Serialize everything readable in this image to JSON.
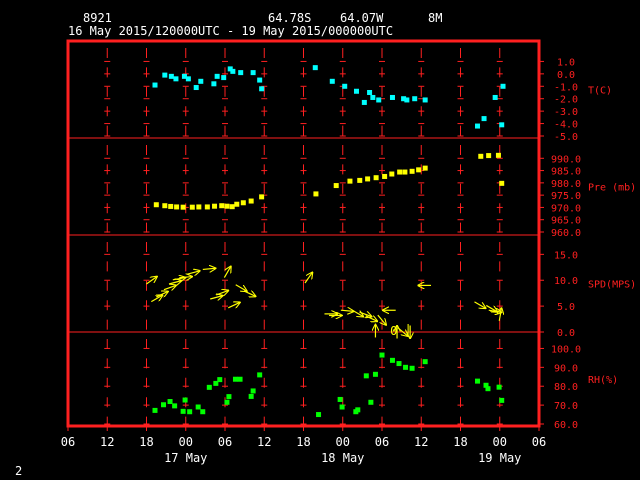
{
  "header": {
    "station": "8921",
    "latitude": "64.78S",
    "longitude": "64.07W",
    "elevation": "8M",
    "period": "16 May 2015/120000UTC - 19 May 2015/000000UTC"
  },
  "footer": {
    "page": "2"
  },
  "colors": {
    "frame": "#ff2020",
    "temperature": "#00ffff",
    "pressure": "#ffff00",
    "wind": "#ffff00",
    "humidity": "#00ff00",
    "text": "#ffffff"
  },
  "chart_data": {
    "type": "scatter",
    "x_unit": "hours after 2015-05-16 00:00 UTC",
    "x_range": [
      6,
      78
    ],
    "x_ticks": [
      6,
      12,
      18,
      24,
      30,
      36,
      42,
      48,
      54,
      60,
      66,
      72,
      78
    ],
    "x_tick_labels": [
      "06",
      "12",
      "18",
      "00",
      "06",
      "12",
      "18",
      "00",
      "06",
      "12",
      "18",
      "00",
      "06"
    ],
    "date_labels": [
      {
        "x": 24,
        "text": "17 May"
      },
      {
        "x": 48,
        "text": "18 May"
      },
      {
        "x": 72,
        "text": "19 May"
      }
    ],
    "panels": [
      {
        "name": "temperature",
        "label": "T(C)",
        "ylim": [
          -5.0,
          2.0
        ],
        "y_ticks": [
          1.0,
          0.0,
          -1.0,
          -2.0,
          -3.0,
          -4.0,
          -5.0
        ],
        "y_tick_labels": [
          "1.0",
          "0.0",
          "-1.0",
          "-2.0",
          "-3.0",
          "-4.0",
          "-5.0"
        ],
        "points": [
          [
            19.3,
            -0.9
          ],
          [
            20.8,
            -0.1
          ],
          [
            21.8,
            -0.2
          ],
          [
            22.5,
            -0.4
          ],
          [
            23.8,
            -0.2
          ],
          [
            24.4,
            -0.4
          ],
          [
            25.6,
            -1.1
          ],
          [
            26.3,
            -0.6
          ],
          [
            28.3,
            -0.8
          ],
          [
            28.8,
            -0.2
          ],
          [
            29.8,
            -0.3
          ],
          [
            30.8,
            0.4
          ],
          [
            31.2,
            0.2
          ],
          [
            32.4,
            0.1
          ],
          [
            34.3,
            0.1
          ],
          [
            35.3,
            -0.5
          ],
          [
            35.6,
            -1.2
          ],
          [
            43.8,
            0.5
          ],
          [
            46.4,
            -0.6
          ],
          [
            48.3,
            -1.0
          ],
          [
            50.1,
            -1.4
          ],
          [
            51.3,
            -2.3
          ],
          [
            52.1,
            -1.5
          ],
          [
            52.6,
            -1.9
          ],
          [
            53.5,
            -2.1
          ],
          [
            55.6,
            -1.9
          ],
          [
            57.3,
            -2.0
          ],
          [
            57.8,
            -2.1
          ],
          [
            59.0,
            -2.0
          ],
          [
            60.6,
            -2.1
          ],
          [
            68.6,
            -4.2
          ],
          [
            69.6,
            -3.6
          ],
          [
            71.3,
            -1.9
          ],
          [
            72.3,
            -4.1
          ],
          [
            72.5,
            -1.0
          ]
        ]
      },
      {
        "name": "pressure",
        "label": "Pre (mb)",
        "ylim": [
          960.0,
          995.0
        ],
        "y_ticks": [
          990.0,
          985.0,
          980.0,
          975.0,
          970.0,
          965.0,
          960.0
        ],
        "y_tick_labels": [
          "990.0",
          "985.0",
          "980.0",
          "975.0",
          "970.0",
          "965.0",
          "960.0"
        ],
        "points": [
          [
            19.5,
            971.1
          ],
          [
            20.8,
            970.7
          ],
          [
            21.7,
            970.4
          ],
          [
            22.6,
            970.2
          ],
          [
            23.6,
            970.1
          ],
          [
            25.0,
            970.1
          ],
          [
            26.0,
            970.2
          ],
          [
            27.3,
            970.2
          ],
          [
            28.4,
            970.5
          ],
          [
            29.5,
            970.7
          ],
          [
            30.3,
            970.5
          ],
          [
            31.1,
            970.3
          ],
          [
            31.8,
            971.3
          ],
          [
            32.8,
            971.9
          ],
          [
            34.0,
            972.6
          ],
          [
            35.6,
            974.3
          ],
          [
            43.9,
            975.5
          ],
          [
            47.0,
            978.9
          ],
          [
            49.1,
            980.7
          ],
          [
            50.6,
            981.0
          ],
          [
            51.8,
            981.6
          ],
          [
            53.1,
            982.1
          ],
          [
            54.4,
            982.6
          ],
          [
            55.5,
            983.6
          ],
          [
            56.7,
            984.4
          ],
          [
            57.5,
            984.4
          ],
          [
            58.6,
            984.7
          ],
          [
            59.6,
            985.3
          ],
          [
            60.6,
            986.0
          ],
          [
            69.1,
            990.8
          ],
          [
            70.3,
            991.1
          ],
          [
            71.8,
            991.2
          ],
          [
            72.3,
            979.8
          ]
        ]
      },
      {
        "name": "wind",
        "label": "SPD(MPS)",
        "ylim": [
          0.0,
          17.0
        ],
        "y_ticks": [
          15.0,
          10.0,
          5.0,
          0.0
        ],
        "y_tick_labels": [
          "15.0",
          "10.0",
          "5.0",
          "0.0"
        ],
        "vectors": [
          {
            "x": 18.8,
            "speed": 10.0,
            "dir": 235
          },
          {
            "x": 19.6,
            "speed": 6.5,
            "dir": 240
          },
          {
            "x": 20.4,
            "speed": 7.3,
            "dir": 245
          },
          {
            "x": 21.6,
            "speed": 8.6,
            "dir": 250
          },
          {
            "x": 22.4,
            "speed": 9.6,
            "dir": 255
          },
          {
            "x": 23.0,
            "speed": 10.3,
            "dir": 260
          },
          {
            "x": 24.0,
            "speed": 10.6,
            "dir": 265
          },
          {
            "x": 25.2,
            "speed": 11.5,
            "dir": 255
          },
          {
            "x": 27.6,
            "speed": 12.2,
            "dir": 265
          },
          {
            "x": 28.7,
            "speed": 6.7,
            "dir": 255
          },
          {
            "x": 29.6,
            "speed": 7.6,
            "dir": 250
          },
          {
            "x": 30.4,
            "speed": 11.6,
            "dir": 210
          },
          {
            "x": 31.4,
            "speed": 5.2,
            "dir": 245
          },
          {
            "x": 32.5,
            "speed": 8.5,
            "dir": 300
          },
          {
            "x": 33.8,
            "speed": 7.4,
            "dir": 295
          },
          {
            "x": 42.8,
            "speed": 10.5,
            "dir": 215
          },
          {
            "x": 46.2,
            "speed": 3.5,
            "dir": 270
          },
          {
            "x": 46.9,
            "speed": 3.2,
            "dir": 270
          },
          {
            "x": 48.7,
            "speed": 4.1,
            "dir": 275
          },
          {
            "x": 50.3,
            "speed": 3.6,
            "dir": 300
          },
          {
            "x": 51.5,
            "speed": 3.4,
            "dir": 290
          },
          {
            "x": 52.4,
            "speed": 2.6,
            "dir": 295
          },
          {
            "x": 53.0,
            "speed": 0.2,
            "dir": 180
          },
          {
            "x": 54.0,
            "speed": 2.3,
            "dir": 320
          },
          {
            "x": 55.1,
            "speed": 4.2,
            "dir": 90
          },
          {
            "x": 56.3,
            "speed": 0.0,
            "dir": 180
          },
          {
            "x": 57.2,
            "speed": 0.0,
            "dir": 310
          },
          {
            "x": 58.3,
            "speed": 0.0,
            "dir": 0
          },
          {
            "x": 60.5,
            "speed": 9.0,
            "dir": 90
          },
          {
            "x": 69.0,
            "speed": 5.2,
            "dir": 300
          },
          {
            "x": 70.8,
            "speed": 4.5,
            "dir": 300
          },
          {
            "x": 71.3,
            "speed": 4.0,
            "dir": 280
          },
          {
            "x": 72.1,
            "speed": 3.4,
            "dir": 190
          }
        ],
        "data_labels": [
          {
            "x": 55.8,
            "y": -0.6,
            "text": "0"
          },
          {
            "x": 58.0,
            "y": -0.3,
            "text": "|"
          }
        ]
      },
      {
        "name": "humidity",
        "label": "RH(%)",
        "ylim": [
          60.0,
          105.0
        ],
        "y_ticks": [
          100.0,
          90.0,
          80.0,
          70.0,
          60.0
        ],
        "y_tick_labels": [
          "100.0",
          "90.0",
          "80.0",
          "70.0",
          "60.0"
        ],
        "points": [
          [
            19.3,
            67.2
          ],
          [
            20.6,
            70.2
          ],
          [
            21.6,
            71.9
          ],
          [
            22.3,
            69.6
          ],
          [
            23.6,
            66.7
          ],
          [
            23.9,
            72.7
          ],
          [
            24.6,
            66.5
          ],
          [
            25.9,
            69.0
          ],
          [
            26.6,
            66.5
          ],
          [
            27.6,
            79.4
          ],
          [
            28.6,
            81.5
          ],
          [
            29.2,
            83.5
          ],
          [
            30.3,
            71.5
          ],
          [
            30.6,
            74.5
          ],
          [
            31.6,
            83.7
          ],
          [
            32.3,
            83.7
          ],
          [
            34.0,
            74.6
          ],
          [
            34.3,
            77.5
          ],
          [
            35.3,
            86.0
          ],
          [
            44.3,
            65.0
          ],
          [
            47.6,
            73.0
          ],
          [
            47.9,
            69.0
          ],
          [
            50.0,
            66.5
          ],
          [
            50.3,
            67.5
          ],
          [
            51.6,
            85.5
          ],
          [
            52.3,
            71.5
          ],
          [
            53.0,
            86.3
          ],
          [
            54.0,
            96.5
          ],
          [
            55.6,
            93.7
          ],
          [
            56.6,
            92.0
          ],
          [
            57.6,
            90.0
          ],
          [
            58.6,
            89.5
          ],
          [
            60.6,
            93.0
          ],
          [
            68.6,
            82.7
          ],
          [
            69.9,
            80.5
          ],
          [
            70.2,
            78.7
          ],
          [
            71.9,
            79.5
          ],
          [
            72.3,
            72.5
          ]
        ]
      }
    ]
  }
}
